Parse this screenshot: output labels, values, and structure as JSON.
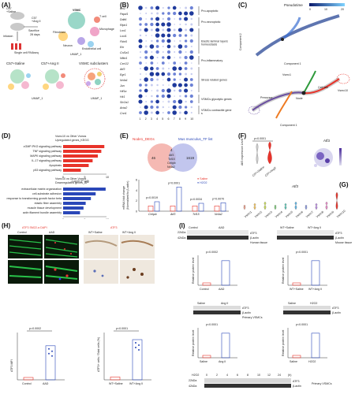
{
  "panels": {
    "A": {
      "label": "(A)",
      "text": {
        "saline_group": "C57\n+Saline",
        "angii_group": "C57\n+Ang II",
        "infusion": "infusion",
        "sacrifice": "Sacrifice",
        "days": "28 days",
        "scrnaseq": "Single cell RNAseq",
        "umap1": "UMAP_1",
        "umap2": "UMAP_2",
        "c57_saline": "C57+Saline",
        "c57_angii": "C57+Ang II",
        "vsmc_subclusters": "VSMC subclusters",
        "vsmc": "VSMC",
        "t_cell": "T cell",
        "fibroblast": "Fibroblast",
        "b_cell": "B cell",
        "microphage": "Microphage",
        "endothelial": "Endothelial cell",
        "neuron": "Neuron"
      }
    },
    "B": {
      "label": "(B)",
      "genes": [
        "Bcl2",
        "Papd1",
        "Ddit4",
        "Ripk1",
        "Lox1",
        "Loxl1",
        "Fbln5",
        "Eln",
        "Col1a1",
        "Nfkb1",
        "Cxcl12",
        "Atf3",
        "Egr1",
        "Nr4a1",
        "Jun",
        "Hif1a",
        "Hk1",
        "Slc2a1",
        "Acta2",
        "Cnn1"
      ],
      "clusters": [
        "1",
        "2",
        "3",
        "4",
        "5",
        "6",
        "7",
        "8",
        "9",
        "10"
      ],
      "groups": [
        "Pro-apoptotic",
        "Pro-necroptotic",
        "Elastic laminar layers homeostasis",
        "Pro-inflammatory",
        "Stress related genes",
        "VSMCs glycolytic genes",
        "VSMCs contractile genes"
      ]
    },
    "C": {
      "label": "(C)",
      "pseudotime": "Pseudotime",
      "pt_ticks": [
        "0",
        "10",
        "20"
      ],
      "comp1": "Component 1",
      "comp2": "Component 2",
      "vsmc1": "Vsmc1",
      "vsmc10": "Vsmc10",
      "node": "Node",
      "cell_fate": "Cell fate",
      "precursor": "Precursor"
    },
    "D": {
      "label": "(D)",
      "title_up": "Vsmc10 vs Other Vsmcs\nUpregulated genes_KEGG",
      "up_terms": [
        "cGMP-PKG signaling pathway",
        "TNF signaling pathway",
        "MAPK signaling pathway",
        "IL-17 signaling pathway",
        "Apoptosis",
        "p53 signaling pathway"
      ],
      "up_values": [
        9.5,
        8.8,
        8.0,
        6.8,
        5.9,
        4.1
      ],
      "title_down": "Vsmc10 vs Other Vsmcs\nDownregulated genes_BP",
      "down_terms": [
        "extracellular matrix organization",
        "cell-substrate adhesion",
        "response to transforming growth factor beta",
        "elastic fiber assembly",
        "muscle tissue development",
        "actin filament bundle assembly"
      ],
      "down_values": [
        9.8,
        7.5,
        6.4,
        5.2,
        4.7,
        3.9
      ],
      "xlabel": "-Log10 (P adj)",
      "ticks": [
        "0",
        "5",
        "10"
      ]
    },
    "E": {
      "label": "(E)",
      "venn_left": "Node1_DEGs",
      "venn_right": "Mus musculus_TF list",
      "n_left": "46",
      "n_overlap": "4",
      "n_right": "1619",
      "overlap_genes": [
        "Atf3",
        "Tcf15",
        "Cebpb",
        "Nr4a2"
      ],
      "legend": [
        "Saline",
        "H2O2"
      ],
      "ylabel": "mRNA fold change\n(Normalized to β-actin)",
      "genes": [
        "Cebpb",
        "Atf3",
        "Tcf15",
        "Nr4a2"
      ],
      "pvals": [
        "p=0.0019",
        "p=0.0001",
        "p=0.0034",
        "p=0.0070"
      ],
      "saline": [
        1.0,
        1.0,
        1.0,
        1.0
      ],
      "h2o2": [
        1.8,
        4.6,
        1.5,
        1.6
      ],
      "yticks": [
        "0",
        "2",
        "4",
        "6"
      ]
    },
    "F": {
      "label": "(F)",
      "pval": "p<0.0001",
      "ylabel": "Atf3 expression Level",
      "groups": [
        "C57+Saline",
        "C57+AngII"
      ],
      "gene": "Atf3"
    },
    "G": {
      "label": "(G)",
      "gene": "Atf3",
      "clusters": [
        "Vsmc1",
        "Vsmc2",
        "Vsmc3",
        "Vsmc4",
        "Vsmc5",
        "Vsmc6",
        "Vsmc7",
        "Vsmc8",
        "Vsmc9",
        "Vsmc10"
      ]
    },
    "H": {
      "label": "(H)",
      "stain_left": "ATF3 SM22-α DAPI",
      "stain_right": "ATF3",
      "col_control": "Control",
      "col_aad": "AAD",
      "col_ws": "WT+Saline",
      "col_wa": "WT+Ang II",
      "p_left": "p=0.0002",
      "p_right": "p<0.0001",
      "ylabel_left": "ATF3 MFI",
      "ylabel_right": "ATF3+ cells / Total cells (%)",
      "x_left": [
        "Control",
        "AAD"
      ],
      "x_right": [
        "WT+Saline",
        "WT+Ang II"
      ]
    },
    "I": {
      "label": "(I)",
      "human_label": "Human tissue",
      "mouse_label": "Mouse tissue",
      "primary_label": "Primary VSMCs",
      "atf3": "ATF3",
      "bactin": "β-actin",
      "kda22": "22kDa",
      "kda42": "42kDa",
      "control": "Control",
      "aad": "AAD",
      "ws": "WT+Saline",
      "wa": "WT+Ang II",
      "saline": "Saline",
      "angii": "Ang II",
      "h2o2": "H2O2",
      "p_human": "p=0.0002",
      "p_mouse": "p<0.0001",
      "p_primary1": "p<0.0001",
      "p_primary2": "p<0.0001",
      "ylabel": "Relative protein level (Fold change)",
      "time_label": "H2O2",
      "times": [
        "0",
        "2",
        "4",
        "6",
        "8",
        "10",
        "12",
        "24",
        "(h)"
      ]
    }
  },
  "colors": {
    "red": "#e8332a",
    "blue": "#2a47b8",
    "purple": "#6a4fa0",
    "orange": "#ee7b22",
    "green": "#2e9a3c"
  }
}
